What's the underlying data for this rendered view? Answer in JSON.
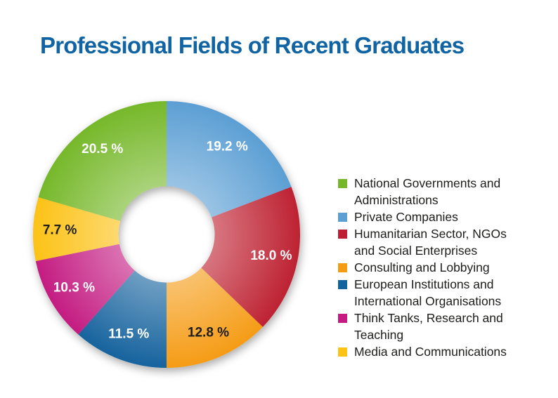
{
  "title": {
    "text": "Professional Fields of Recent Graduates",
    "color": "#1064a4"
  },
  "chart_data": {
    "type": "pie",
    "variant": "donut",
    "title": "Professional Fields of Recent Graduates",
    "unit": "%",
    "direction": "clockwise",
    "start_angle_deg": 0,
    "inner_radius_ratio": 0.36,
    "legend_position": "right",
    "slices": [
      {
        "label": "Private Companies",
        "value": 19.2,
        "value_label": "19.2 %",
        "color": "#5b9fd4",
        "value_label_color": "#ffffff"
      },
      {
        "label": "Humanitarian Sector, NGOs and Social Enterprises",
        "value": 18.0,
        "value_label": "18.0 %",
        "color": "#be2033",
        "value_label_color": "#ffffff"
      },
      {
        "label": "Consulting and Lobbying",
        "value": 12.8,
        "value_label": "12.8 %",
        "color": "#f59c15",
        "value_label_color": "#1d1d1b"
      },
      {
        "label": "European Institutions and International Organisations",
        "value": 11.5,
        "value_label": "11.5 %",
        "color": "#12649e",
        "value_label_color": "#ffffff"
      },
      {
        "label": "Think Tanks, Research and Teaching",
        "value": 10.3,
        "value_label": "10.3 %",
        "color": "#c41a82",
        "value_label_color": "#ffffff"
      },
      {
        "label": "Media and Communications",
        "value": 7.7,
        "value_label": "7.7 %",
        "color": "#fcc216",
        "value_label_color": "#1d1d1b"
      },
      {
        "label": "National Governments and Administrations",
        "value": 20.5,
        "value_label": "20.5 %",
        "color": "#76b82a",
        "value_label_color": "#ffffff"
      }
    ]
  },
  "legend": {
    "text_color": "#1d1d1b",
    "items": [
      {
        "label": "National Governments and\nAdministrations",
        "color": "#76b82a"
      },
      {
        "label": "Private Companies",
        "color": "#5b9fd4"
      },
      {
        "label": "Humanitarian Sector, NGOs\nand Social Enterprises",
        "color": "#be2033"
      },
      {
        "label": "Consulting and Lobbying",
        "color": "#f59c15"
      },
      {
        "label": "European Institutions and\nInternational Organisations",
        "color": "#12649e"
      },
      {
        "label": "Think Tanks, Research and\nTeaching",
        "color": "#c41a82"
      },
      {
        "label": "Media and Communications",
        "color": "#fcc216"
      }
    ]
  }
}
